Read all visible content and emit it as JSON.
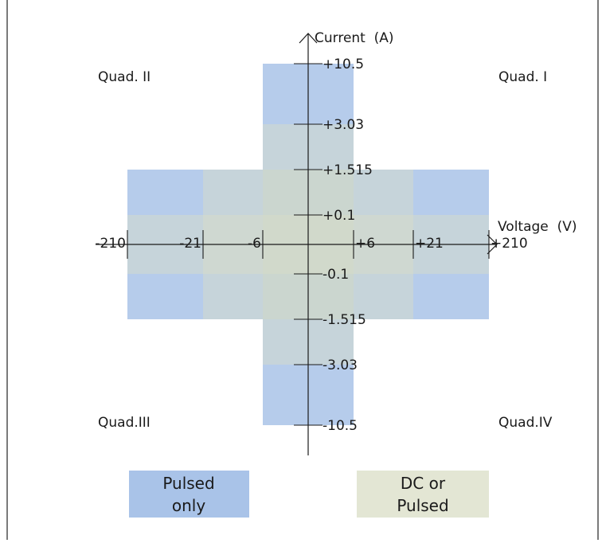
{
  "axes": {
    "x_label": "Voltage  (V)",
    "y_label": "Current  (A)"
  },
  "x_ticks": [
    {
      "value": -210,
      "label": "-210"
    },
    {
      "value": -21,
      "label": "-21"
    },
    {
      "value": -6,
      "label": "-6"
    },
    {
      "value": 6,
      "label": "+6"
    },
    {
      "value": 21,
      "label": "+21"
    },
    {
      "value": 210,
      "label": "+210"
    }
  ],
  "y_ticks": [
    {
      "value": 10.5,
      "label": "+10.5"
    },
    {
      "value": 3.03,
      "label": "+3.03"
    },
    {
      "value": 1.515,
      "label": "+1.515"
    },
    {
      "value": 0.1,
      "label": "+0.1"
    },
    {
      "value": -0.1,
      "label": "-0.1"
    },
    {
      "value": -1.515,
      "label": "-1.515"
    },
    {
      "value": -3.03,
      "label": "-3.03"
    },
    {
      "value": -10.5,
      "label": "-10.5"
    }
  ],
  "quadrants": {
    "q1": "Quad. I",
    "q2": "Quad. II",
    "q3": "Quad.III",
    "q4": "Quad.IV"
  },
  "regions": [
    {
      "voltage": 6,
      "current": 10.5,
      "mode": "pulsed"
    },
    {
      "voltage": 210,
      "current": 1.515,
      "mode": "pulsed"
    },
    {
      "voltage": 6,
      "current": 3.03,
      "mode": "dc"
    },
    {
      "voltage": 21,
      "current": 1.515,
      "mode": "dc"
    },
    {
      "voltage": 210,
      "current": 0.1,
      "mode": "dc"
    }
  ],
  "legend": {
    "pulsed_line1": "Pulsed",
    "pulsed_line2": "only",
    "dc_line1": "DC or",
    "dc_line2": "Pulsed"
  },
  "colors": {
    "pulsed": "#a9c3e8",
    "dc": "#d9dec5",
    "axis": "#1a1a1a"
  }
}
